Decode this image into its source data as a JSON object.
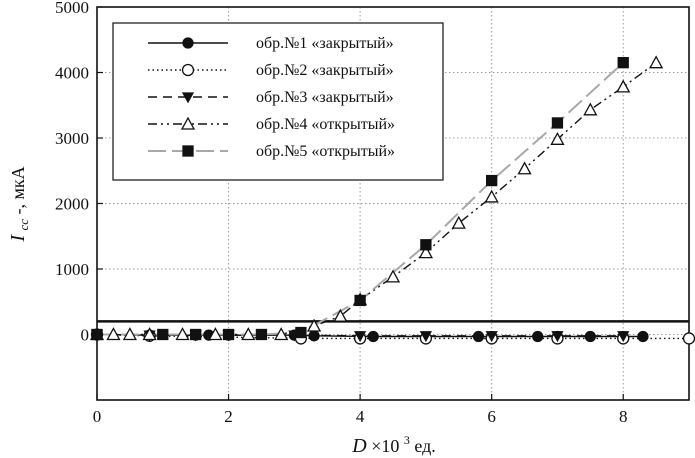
{
  "chart_data": {
    "type": "line",
    "title": "",
    "xlabel": {
      "main": "D",
      "times": "×10",
      "sup": "3",
      "unit": " ед."
    },
    "ylabel": {
      "main": "I",
      "sub": "cc",
      "unit": "-, мкА"
    },
    "xlim": [
      0,
      9
    ],
    "ylim": [
      -1000,
      5000
    ],
    "xticks": [
      0,
      2,
      4,
      6,
      8
    ],
    "yticks": [
      0,
      1000,
      2000,
      3000,
      4000,
      5000
    ],
    "grid": "dotted",
    "legend_position": "top-left",
    "threshold_line": 200,
    "series": [
      {
        "name": "обр.№1 «закрытый»",
        "style": "solid",
        "marker": "filled-circle",
        "color": "#111111",
        "x": [
          0,
          0.8,
          1.5,
          1.7,
          2.0,
          3.0,
          3.3,
          4.2,
          5.8,
          6.0,
          6.7,
          7.0,
          7.5,
          8.0,
          8.3
        ],
        "y": [
          0,
          -10,
          -10,
          -10,
          -10,
          -10,
          -20,
          -30,
          -30,
          -30,
          -30,
          -30,
          -30,
          -30,
          -30
        ]
      },
      {
        "name": "обр.№2 «закрытый»",
        "style": "dotted",
        "marker": "open-circle",
        "color": "#111111",
        "x": [
          0,
          0.8,
          3.1,
          4.0,
          5.0,
          6.0,
          7.0,
          8.0,
          9.0
        ],
        "y": [
          0,
          -20,
          -60,
          -60,
          -60,
          -60,
          -60,
          -60,
          -60
        ]
      },
      {
        "name": "обр.№3 «закрытый»",
        "style": "dashed",
        "marker": "filled-triangle-down",
        "color": "#111111",
        "x": [
          0,
          0.8,
          1.5,
          2.0,
          3.0,
          4.0,
          5.0,
          6.0,
          7.0,
          8.0
        ],
        "y": [
          0,
          -10,
          -10,
          -10,
          -10,
          -20,
          -20,
          -20,
          -20,
          -20
        ]
      },
      {
        "name": "обр.№4 «открытый»",
        "style": "dashdot",
        "marker": "open-triangle-up",
        "color": "#111111",
        "x": [
          0,
          0.25,
          0.5,
          0.8,
          1.3,
          1.8,
          2.3,
          2.8,
          3.3,
          3.7,
          4.0,
          4.5,
          5.0,
          5.5,
          6.0,
          6.5,
          7.0,
          7.5,
          8.0,
          8.5
        ],
        "y": [
          0,
          0,
          0,
          0,
          0,
          0,
          0,
          0,
          130,
          280,
          530,
          880,
          1250,
          1700,
          2100,
          2530,
          2980,
          3430,
          3780,
          4150
        ]
      },
      {
        "name": "обр.№5 «открытый»",
        "style": "longdash",
        "marker": "filled-square",
        "color": "#a8a8a8",
        "x": [
          0,
          1.0,
          1.5,
          2.0,
          2.5,
          3.1,
          4.0,
          5.0,
          6.0,
          7.0,
          8.0
        ],
        "y": [
          0,
          0,
          0,
          0,
          0,
          30,
          520,
          1370,
          2350,
          3230,
          4150
        ]
      }
    ]
  }
}
